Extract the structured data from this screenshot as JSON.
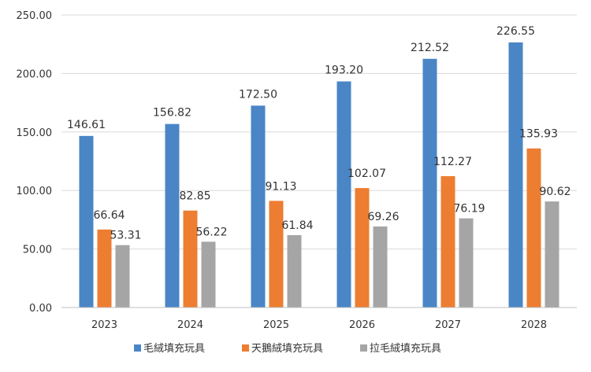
{
  "chart_data": {
    "type": "bar",
    "categories": [
      "2023",
      "2024",
      "2025",
      "2026",
      "2027",
      "2028"
    ],
    "series": [
      {
        "name": "毛絨填充玩具",
        "color": "#4a86c6",
        "values": [
          146.61,
          156.82,
          172.5,
          193.2,
          212.52,
          226.55
        ]
      },
      {
        "name": "天鵝絨填充玩具",
        "color": "#ed7d31",
        "values": [
          66.64,
          82.85,
          91.13,
          102.07,
          112.27,
          135.93
        ]
      },
      {
        "name": "拉毛絨填充玩具",
        "color": "#a5a5a5",
        "values": [
          53.31,
          56.22,
          61.84,
          69.26,
          76.19,
          90.62
        ]
      }
    ],
    "yticks": [
      "0.00",
      "50.00",
      "100.00",
      "150.00",
      "200.00",
      "250.00"
    ],
    "ylim": [
      0,
      250
    ],
    "grid": true,
    "legend_position": "bottom",
    "data_labels": true
  }
}
